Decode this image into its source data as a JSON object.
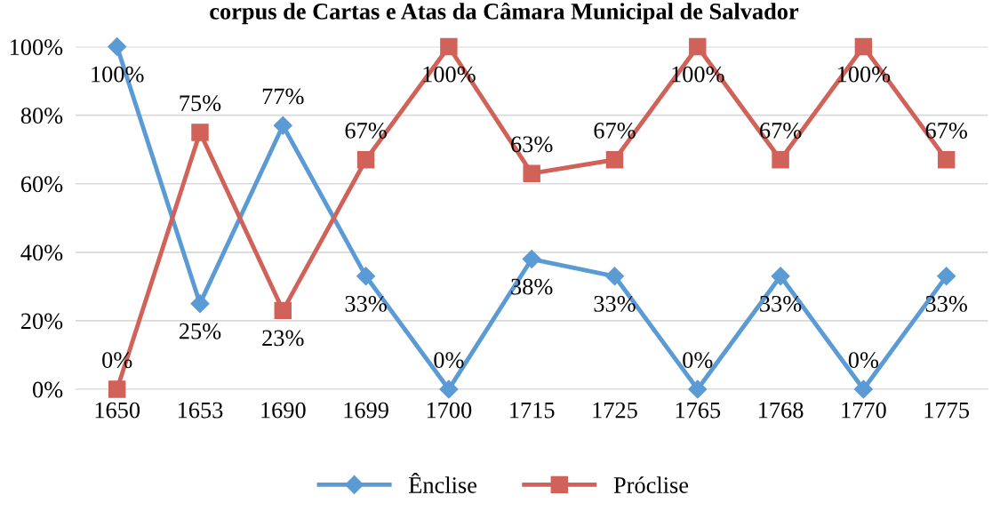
{
  "chart_data": {
    "type": "line",
    "title": "corpus de Cartas e Atas da Câmara Municipal de Salvador",
    "categories": [
      "1650",
      "1653",
      "1690",
      "1699",
      "1700",
      "1715",
      "1725",
      "1765",
      "1768",
      "1770",
      "1775"
    ],
    "series": [
      {
        "name": "Ênclise",
        "color": "#5b9bd5",
        "marker": "diamond",
        "values": [
          100,
          25,
          77,
          33,
          0,
          38,
          33,
          0,
          33,
          0,
          33
        ],
        "value_labels": [
          "100%",
          "25%",
          "77%",
          "33%",
          "0%",
          "38%",
          "33%",
          "0%",
          "33%",
          "0%",
          "33%"
        ]
      },
      {
        "name": "Próclise",
        "color": "#d0625a",
        "marker": "square",
        "values": [
          0,
          75,
          23,
          67,
          100,
          63,
          67,
          100,
          67,
          100,
          67
        ],
        "value_labels": [
          "0%",
          "75%",
          "23%",
          "67%",
          "100%",
          "63%",
          "67%",
          "100%",
          "67%",
          "100%",
          "67%"
        ]
      }
    ],
    "ylim": [
      0,
      100
    ],
    "yticks": [
      {
        "value": 0,
        "label": "0%"
      },
      {
        "value": 20,
        "label": "20%"
      },
      {
        "value": 40,
        "label": "40%"
      },
      {
        "value": 60,
        "label": "60%"
      },
      {
        "value": 80,
        "label": "80%"
      },
      {
        "value": 100,
        "label": "100%"
      }
    ],
    "grid": "y",
    "legend": "bottom",
    "line_style": "solid"
  }
}
